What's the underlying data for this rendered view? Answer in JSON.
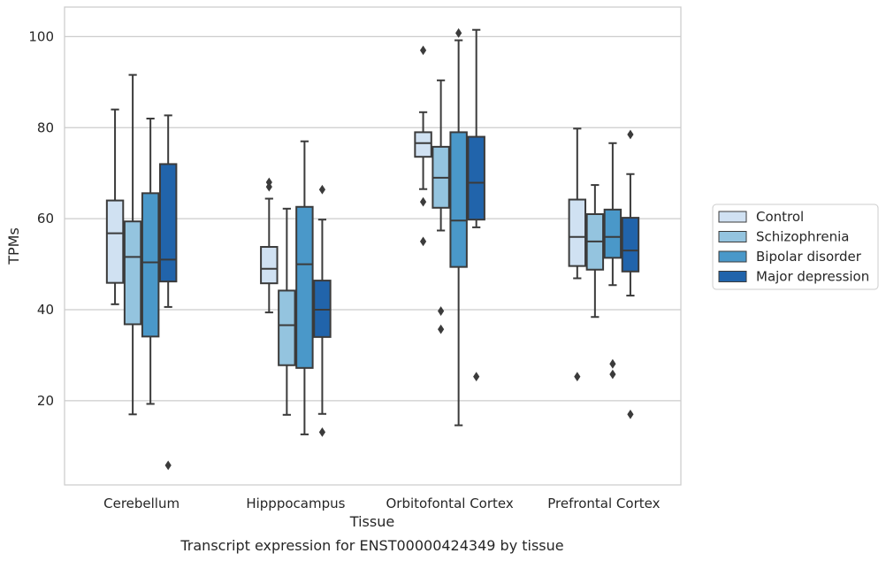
{
  "chart_data": {
    "type": "box",
    "caption": "Transcript expression for ENST00000424349 by tissue",
    "xlabel": "Tissue",
    "ylabel": "TPMs",
    "ylim": [
      1.5,
      106.5
    ],
    "yticks": [
      20,
      40,
      60,
      80,
      100
    ],
    "grid": "horizontal",
    "legend_position": "right",
    "categories": [
      "Cerebellum",
      "Hipppocampus",
      "Orbitofontal Cortex",
      "Prefrontal Cortex"
    ],
    "series": [
      {
        "name": "Control",
        "color": "#d0e1f2",
        "boxes": [
          {
            "whislo": 41.2,
            "q1": 45.9,
            "med": 56.8,
            "q3": 64.0,
            "whishi": 84.0,
            "fliers": []
          },
          {
            "whislo": 39.4,
            "q1": 45.8,
            "med": 49.0,
            "q3": 53.8,
            "whishi": 64.4,
            "fliers": [
              67.0,
              68.0
            ]
          },
          {
            "whislo": 66.5,
            "q1": 73.6,
            "med": 76.6,
            "q3": 79.0,
            "whishi": 83.4,
            "fliers": [
              97.0,
              63.7,
              55.0
            ]
          },
          {
            "whislo": 46.9,
            "q1": 49.6,
            "med": 56.0,
            "q3": 64.2,
            "whishi": 79.8,
            "fliers": [
              25.3
            ]
          }
        ]
      },
      {
        "name": "Schizophrenia",
        "color": "#94c4df",
        "boxes": [
          {
            "whislo": 17.0,
            "q1": 36.8,
            "med": 51.6,
            "q3": 59.4,
            "whishi": 91.6,
            "fliers": []
          },
          {
            "whislo": 16.9,
            "q1": 27.8,
            "med": 36.6,
            "q3": 44.2,
            "whishi": 62.2,
            "fliers": []
          },
          {
            "whislo": 57.4,
            "q1": 62.4,
            "med": 69.0,
            "q3": 75.8,
            "whishi": 90.4,
            "fliers": [
              39.7,
              35.7
            ]
          },
          {
            "whislo": 38.4,
            "q1": 48.8,
            "med": 55.0,
            "q3": 61.0,
            "whishi": 67.4,
            "fliers": []
          }
        ]
      },
      {
        "name": "Bipolar disorder",
        "color": "#4a98c9",
        "boxes": [
          {
            "whislo": 19.3,
            "q1": 34.1,
            "med": 50.4,
            "q3": 65.6,
            "whishi": 82.0,
            "fliers": []
          },
          {
            "whislo": 12.6,
            "q1": 27.2,
            "med": 50.0,
            "q3": 62.6,
            "whishi": 77.0,
            "fliers": []
          },
          {
            "whislo": 14.6,
            "q1": 49.4,
            "med": 59.6,
            "q3": 79.0,
            "whishi": 99.2,
            "fliers": [
              100.8
            ]
          },
          {
            "whislo": 45.4,
            "q1": 51.4,
            "med": 56.0,
            "q3": 62.0,
            "whishi": 76.6,
            "fliers": [
              28.1,
              25.8
            ]
          }
        ]
      },
      {
        "name": "Major depression",
        "color": "#2164ab",
        "boxes": [
          {
            "whislo": 40.6,
            "q1": 46.2,
            "med": 51.0,
            "q3": 72.0,
            "whishi": 82.7,
            "fliers": [
              5.8
            ]
          },
          {
            "whislo": 17.1,
            "q1": 34.0,
            "med": 40.0,
            "q3": 46.4,
            "whishi": 59.8,
            "fliers": [
              66.4,
              13.1
            ]
          },
          {
            "whislo": 58.1,
            "q1": 59.8,
            "med": 67.9,
            "q3": 78.0,
            "whishi": 101.5,
            "fliers": [
              25.3
            ]
          },
          {
            "whislo": 43.1,
            "q1": 48.4,
            "med": 53.0,
            "q3": 60.2,
            "whishi": 69.8,
            "fliers": [
              78.5,
              17.0
            ]
          }
        ]
      }
    ]
  }
}
